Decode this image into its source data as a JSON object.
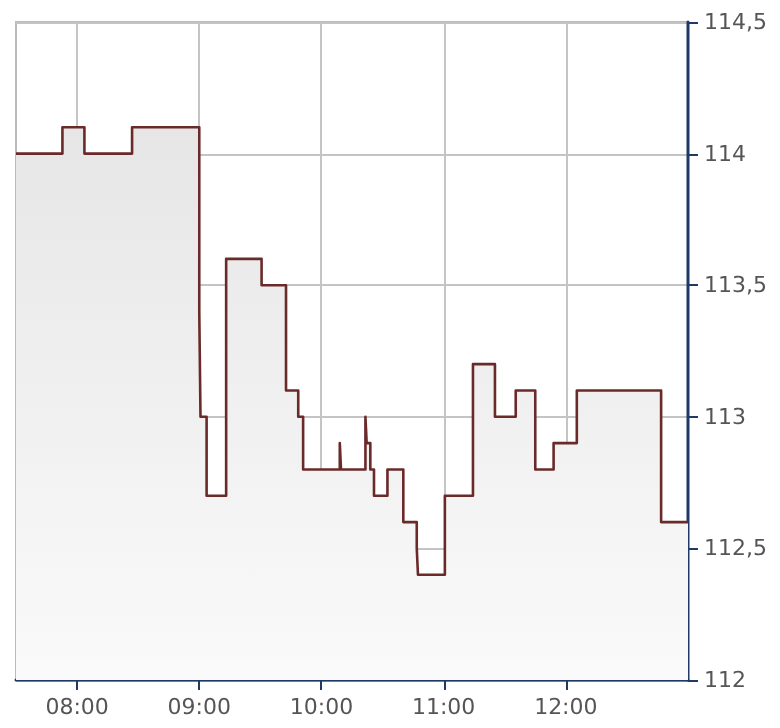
{
  "chart_data": {
    "type": "area",
    "x": [
      7.5,
      7.88,
      7.88,
      8.06,
      8.06,
      8.45,
      8.45,
      9.0,
      9.0,
      9.01,
      9.01,
      9.06,
      9.06,
      9.22,
      9.22,
      9.51,
      9.51,
      9.71,
      9.71,
      9.81,
      9.81,
      9.85,
      9.85,
      10.15,
      10.15,
      10.16,
      10.16,
      10.36,
      10.36,
      10.37,
      10.37,
      10.4,
      10.4,
      10.43,
      10.43,
      10.54,
      10.54,
      10.67,
      10.67,
      10.78,
      10.78,
      10.79,
      10.79,
      11.01,
      11.01,
      11.24,
      11.24,
      11.42,
      11.42,
      11.59,
      11.59,
      11.75,
      11.75,
      11.9,
      11.9,
      12.09,
      12.09,
      12.78,
      12.78,
      13.0
    ],
    "series": [
      {
        "color": "#6b2a2a",
        "values": [
          114,
          114,
          114.1,
          114.1,
          114,
          114,
          114.1,
          114.1,
          113.4,
          113.4,
          113,
          113,
          112.7,
          112.7,
          113.6,
          113.6,
          113.5,
          113.5,
          113.1,
          113.1,
          113,
          113,
          112.8,
          112.8,
          112.9,
          112.9,
          112.8,
          112.8,
          113,
          113,
          112.9,
          112.9,
          112.8,
          112.8,
          112.7,
          112.7,
          112.8,
          112.8,
          112.6,
          112.6,
          112.5,
          112.5,
          112.4,
          112.4,
          112.7,
          112.7,
          113.2,
          113.2,
          113,
          113,
          113.1,
          113.1,
          112.8,
          112.8,
          112.9,
          112.9,
          113.1,
          113.1,
          112.6,
          112.6
        ]
      }
    ],
    "xlim": [
      7.5,
      13.0
    ],
    "xticks": [
      {
        "value": 8,
        "label": "08:00"
      },
      {
        "value": 9,
        "label": "09:00"
      },
      {
        "value": 10,
        "label": "10:00"
      },
      {
        "value": 11,
        "label": "11:00"
      },
      {
        "value": 12,
        "label": "12:00"
      }
    ],
    "ylim": [
      112,
      114.5
    ],
    "yticks": [
      {
        "value": 112,
        "label": "112"
      },
      {
        "value": 112.5,
        "label": "112,5"
      },
      {
        "value": 113,
        "label": "113"
      },
      {
        "value": 113.5,
        "label": "113,5"
      },
      {
        "value": 114,
        "label": "114"
      },
      {
        "value": 114.5,
        "label": "114,5"
      }
    ],
    "grid": true,
    "marker": "none"
  }
}
